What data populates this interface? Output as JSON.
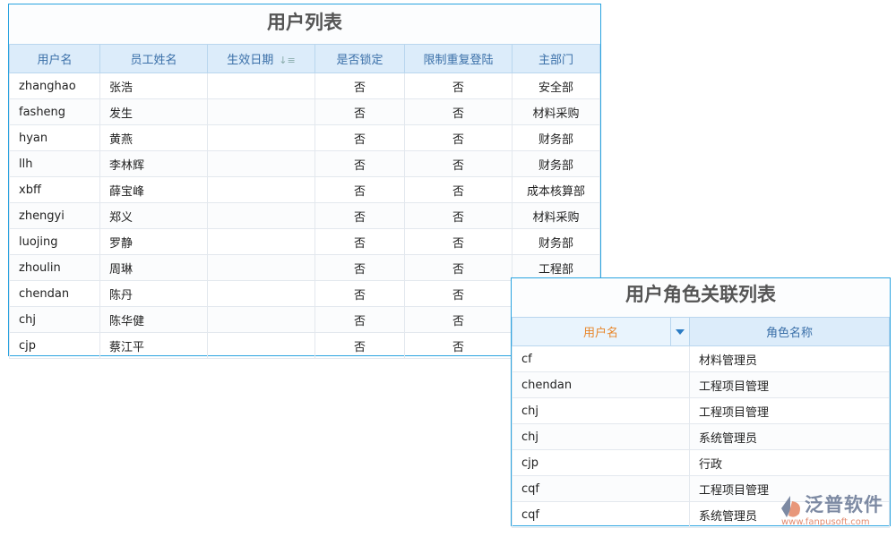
{
  "user_list": {
    "title": "用户列表",
    "columns": [
      "用户名",
      "员工姓名",
      "生效日期",
      "是否锁定",
      "限制重复登陆",
      "主部门"
    ],
    "rows": [
      [
        "zhanghao",
        "张浩",
        "",
        "否",
        "否",
        "安全部"
      ],
      [
        "fasheng",
        "发生",
        "",
        "否",
        "否",
        "材料采购"
      ],
      [
        "hyan",
        "黄燕",
        "",
        "否",
        "否",
        "财务部"
      ],
      [
        "llh",
        "李林辉",
        "",
        "否",
        "否",
        "财务部"
      ],
      [
        "xbff",
        "薛宝峰",
        "",
        "否",
        "否",
        "成本核算部"
      ],
      [
        "zhengyi",
        "郑义",
        "",
        "否",
        "否",
        "材料采购"
      ],
      [
        "luojing",
        "罗静",
        "",
        "否",
        "否",
        "财务部"
      ],
      [
        "zhoulin",
        "周琳",
        "",
        "否",
        "否",
        "工程部"
      ],
      [
        "chendan",
        "陈丹",
        "",
        "否",
        "否",
        ""
      ],
      [
        "chj",
        "陈华健",
        "",
        "否",
        "否",
        ""
      ],
      [
        "cjp",
        "蔡江平",
        "",
        "否",
        "否",
        ""
      ]
    ]
  },
  "role_list": {
    "title": "用户角色关联列表",
    "columns": [
      "用户名",
      "角色名称"
    ],
    "rows": [
      [
        "cf",
        "材料管理员"
      ],
      [
        "chendan",
        "工程项目管理"
      ],
      [
        "chj",
        "工程项目管理"
      ],
      [
        "chj",
        "系统管理员"
      ],
      [
        "cjp",
        "行政"
      ],
      [
        "cqf",
        "工程项目管理"
      ],
      [
        "cqf",
        "系统管理员"
      ]
    ]
  },
  "logo": {
    "name": "泛普软件",
    "url": "www.fanpusoft.com"
  },
  "colors": {
    "border": "#29a3e0",
    "header_bg": "#dcecfa",
    "active_header": "#e8862a"
  }
}
